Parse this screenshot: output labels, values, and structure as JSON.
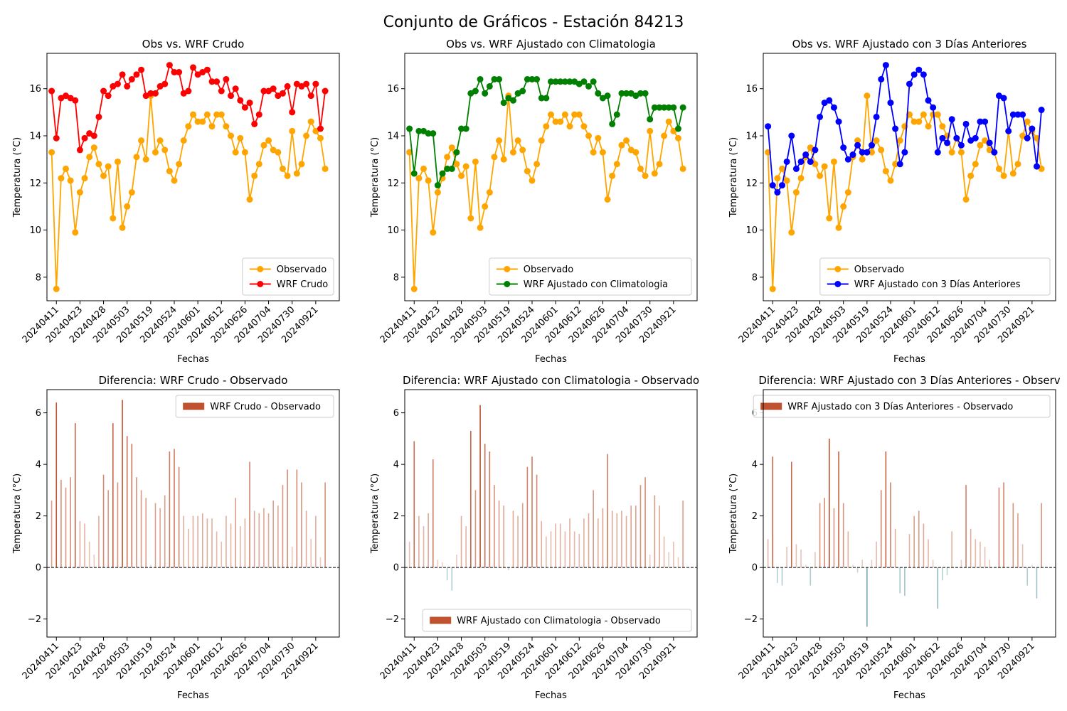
{
  "page": {
    "title": "Conjunto de Gráficos - Estación 84213"
  },
  "colors": {
    "observed": "#FFA500",
    "raw": "#FF0000",
    "clim": "#008000",
    "prev3": "#0000FF",
    "bar_pos": "#C0522F",
    "bar_neg": "#1F6F7F"
  },
  "chart_data": [
    {
      "type": "line",
      "title": "Obs vs. WRF Crudo",
      "xlabel": "Fechas",
      "ylabel": "Temperatura (°C)",
      "ylim": [
        7.0,
        17.5
      ],
      "yticks": [
        8,
        10,
        12,
        14,
        16
      ],
      "xticks": [
        {
          "x": 1,
          "label": "20240411"
        },
        {
          "x": 6,
          "label": "20240423"
        },
        {
          "x": 11,
          "label": "20240428"
        },
        {
          "x": 16,
          "label": "20240503"
        },
        {
          "x": 21,
          "label": "20240519"
        },
        {
          "x": 26,
          "label": "20240524"
        },
        {
          "x": 31,
          "label": "20240601"
        },
        {
          "x": 36,
          "label": "20240612"
        },
        {
          "x": 41,
          "label": "20240626"
        },
        {
          "x": 46,
          "label": "20240704"
        },
        {
          "x": 51,
          "label": "20240730"
        },
        {
          "x": 56,
          "label": "20240921"
        }
      ],
      "legend": "lower-right",
      "series": [
        {
          "name": "Observado",
          "color": "#FFA500",
          "values": [
            13.3,
            7.5,
            12.2,
            12.6,
            12.1,
            9.9,
            11.6,
            12.2,
            13.1,
            13.5,
            12.8,
            12.3,
            12.7,
            10.5,
            12.9,
            10.1,
            11.0,
            11.6,
            13.1,
            13.8,
            13.0,
            15.7,
            13.3,
            13.8,
            13.4,
            12.5,
            12.1,
            12.8,
            13.8,
            14.4,
            14.9,
            14.6,
            14.6,
            14.9,
            14.4,
            14.9,
            14.9,
            14.4,
            14.0,
            13.3,
            13.9,
            13.3,
            11.3,
            12.3,
            12.8,
            13.6,
            13.8,
            13.4,
            13.3,
            12.6,
            12.3,
            14.2,
            12.4,
            12.8,
            14.0,
            14.6,
            14.2,
            13.9,
            12.6
          ]
        },
        {
          "name": "WRF Crudo",
          "color": "#FF0000",
          "values": [
            15.9,
            13.9,
            15.6,
            15.7,
            15.6,
            15.5,
            13.4,
            13.9,
            14.1,
            14.0,
            14.8,
            15.9,
            15.7,
            16.1,
            16.2,
            16.6,
            16.1,
            16.4,
            16.6,
            16.8,
            15.7,
            15.8,
            15.8,
            16.1,
            16.2,
            17.0,
            16.7,
            16.7,
            15.8,
            15.9,
            16.9,
            16.6,
            16.7,
            16.8,
            16.3,
            16.3,
            15.9,
            16.4,
            15.7,
            16.0,
            15.5,
            15.2,
            15.4,
            14.5,
            14.9,
            15.9,
            15.9,
            16.0,
            15.7,
            15.8,
            16.1,
            15.0,
            16.2,
            16.1,
            16.2,
            15.7,
            16.2,
            14.3,
            15.9
          ]
        }
      ]
    },
    {
      "type": "line",
      "title": "Obs vs. WRF Ajustado con Climatologia",
      "xlabel": "Fechas",
      "ylabel": "Temperatura (°C)",
      "ylim": [
        7.0,
        17.5
      ],
      "yticks": [
        8,
        10,
        12,
        14,
        16
      ],
      "xticks": [
        {
          "x": 1,
          "label": "20240411"
        },
        {
          "x": 6,
          "label": "20240423"
        },
        {
          "x": 11,
          "label": "20240428"
        },
        {
          "x": 16,
          "label": "20240503"
        },
        {
          "x": 21,
          "label": "20240519"
        },
        {
          "x": 26,
          "label": "20240524"
        },
        {
          "x": 31,
          "label": "20240601"
        },
        {
          "x": 36,
          "label": "20240612"
        },
        {
          "x": 41,
          "label": "20240626"
        },
        {
          "x": 46,
          "label": "20240704"
        },
        {
          "x": 51,
          "label": "20240730"
        },
        {
          "x": 56,
          "label": "20240921"
        }
      ],
      "legend": "lower-right",
      "series": [
        {
          "name": "Observado",
          "color": "#FFA500",
          "values": [
            13.3,
            7.5,
            12.2,
            12.6,
            12.1,
            9.9,
            11.6,
            12.2,
            13.1,
            13.5,
            12.8,
            12.3,
            12.7,
            10.5,
            12.9,
            10.1,
            11.0,
            11.6,
            13.1,
            13.8,
            13.0,
            15.7,
            13.3,
            13.8,
            13.4,
            12.5,
            12.1,
            12.8,
            13.8,
            14.4,
            14.9,
            14.6,
            14.6,
            14.9,
            14.4,
            14.9,
            14.9,
            14.4,
            14.0,
            13.3,
            13.9,
            13.3,
            11.3,
            12.3,
            12.8,
            13.6,
            13.8,
            13.4,
            13.3,
            12.6,
            12.3,
            14.2,
            12.4,
            12.8,
            14.0,
            14.6,
            14.2,
            13.9,
            12.6
          ]
        },
        {
          "name": "WRF Ajustado con Climatologia",
          "color": "#008000",
          "values": [
            14.3,
            12.4,
            14.2,
            14.2,
            14.1,
            14.1,
            11.9,
            12.4,
            12.6,
            12.6,
            13.3,
            14.3,
            14.3,
            15.8,
            15.9,
            16.4,
            15.8,
            16.1,
            16.4,
            16.4,
            15.4,
            15.6,
            15.5,
            15.8,
            15.9,
            16.4,
            16.4,
            16.4,
            15.6,
            15.6,
            16.3,
            16.3,
            16.3,
            16.3,
            16.3,
            16.3,
            16.2,
            16.3,
            16.1,
            16.3,
            15.8,
            15.6,
            15.7,
            14.5,
            14.9,
            15.8,
            15.8,
            15.8,
            15.7,
            15.8,
            15.8,
            14.7,
            15.2,
            15.2,
            15.2,
            15.2,
            15.2,
            14.3,
            15.2
          ]
        }
      ]
    },
    {
      "type": "line",
      "title": "Obs vs. WRF Ajustado con 3 Días Anteriores",
      "xlabel": "Fechas",
      "ylabel": "Temperatura (°C)",
      "ylim": [
        7.0,
        17.5
      ],
      "yticks": [
        8,
        10,
        12,
        14,
        16
      ],
      "xticks": [
        {
          "x": 1,
          "label": "20240411"
        },
        {
          "x": 6,
          "label": "20240423"
        },
        {
          "x": 11,
          "label": "20240428"
        },
        {
          "x": 16,
          "label": "20240503"
        },
        {
          "x": 21,
          "label": "20240519"
        },
        {
          "x": 26,
          "label": "20240524"
        },
        {
          "x": 31,
          "label": "20240601"
        },
        {
          "x": 36,
          "label": "20240612"
        },
        {
          "x": 41,
          "label": "20240626"
        },
        {
          "x": 46,
          "label": "20240704"
        },
        {
          "x": 51,
          "label": "20240730"
        },
        {
          "x": 56,
          "label": "20240921"
        }
      ],
      "legend": "lower-right",
      "series": [
        {
          "name": "Observado",
          "color": "#FFA500",
          "values": [
            13.3,
            7.5,
            12.2,
            12.6,
            12.1,
            9.9,
            11.6,
            12.2,
            13.1,
            13.5,
            12.8,
            12.3,
            12.7,
            10.5,
            12.9,
            10.1,
            11.0,
            11.6,
            13.1,
            13.8,
            13.0,
            15.7,
            13.3,
            13.8,
            13.4,
            12.5,
            12.1,
            12.8,
            13.8,
            14.4,
            14.9,
            14.6,
            14.6,
            14.9,
            14.4,
            14.9,
            14.9,
            14.4,
            14.0,
            13.3,
            13.9,
            13.3,
            11.3,
            12.3,
            12.8,
            13.6,
            13.8,
            13.4,
            13.3,
            12.6,
            12.3,
            14.2,
            12.4,
            12.8,
            14.0,
            14.6,
            14.2,
            13.9,
            12.6
          ]
        },
        {
          "name": "WRF Ajustado con 3 Días Anteriores",
          "color": "#0000FF",
          "values": [
            14.4,
            11.9,
            11.6,
            11.9,
            12.9,
            14.0,
            12.6,
            12.9,
            13.2,
            12.9,
            13.4,
            14.8,
            15.4,
            15.5,
            15.2,
            14.6,
            13.5,
            13.0,
            13.2,
            13.6,
            13.3,
            13.3,
            13.6,
            14.8,
            16.4,
            17.0,
            15.4,
            14.3,
            12.8,
            13.3,
            16.2,
            16.6,
            16.8,
            16.6,
            15.5,
            15.2,
            13.3,
            13.9,
            13.7,
            14.7,
            13.9,
            13.6,
            14.5,
            13.8,
            13.9,
            14.6,
            14.6,
            13.7,
            13.3,
            15.7,
            15.6,
            14.2,
            14.9,
            14.9,
            14.9,
            13.9,
            14.3,
            12.7,
            15.1
          ]
        }
      ]
    },
    {
      "type": "bar",
      "title": "Diferencia: WRF Crudo - Observado",
      "xlabel": "Fechas",
      "ylabel": "Temperatura (°C)",
      "ylim": [
        -2.7,
        6.9
      ],
      "yticks": [
        -2,
        0,
        2,
        4,
        6
      ],
      "xticks": [
        {
          "x": 1,
          "label": "20240411"
        },
        {
          "x": 6,
          "label": "20240423"
        },
        {
          "x": 11,
          "label": "20240428"
        },
        {
          "x": 16,
          "label": "20240503"
        },
        {
          "x": 21,
          "label": "20240519"
        },
        {
          "x": 26,
          "label": "20240524"
        },
        {
          "x": 31,
          "label": "20240601"
        },
        {
          "x": 36,
          "label": "20240612"
        },
        {
          "x": 41,
          "label": "20240626"
        },
        {
          "x": 46,
          "label": "20240704"
        },
        {
          "x": 51,
          "label": "20240730"
        },
        {
          "x": 56,
          "label": "20240921"
        }
      ],
      "legend": "upper-right",
      "series": [
        {
          "name": "WRF Crudo - Observado",
          "values": [
            2.6,
            6.4,
            3.4,
            3.1,
            3.5,
            5.6,
            1.8,
            1.7,
            1.0,
            0.5,
            2.0,
            3.6,
            3.0,
            5.6,
            3.3,
            6.5,
            5.1,
            4.8,
            3.5,
            3.0,
            2.7,
            0.1,
            2.5,
            2.3,
            2.8,
            4.5,
            4.6,
            3.9,
            2.0,
            1.5,
            2.0,
            2.0,
            2.1,
            1.9,
            1.9,
            1.4,
            1.0,
            2.0,
            1.7,
            2.7,
            1.6,
            1.9,
            4.1,
            2.2,
            2.1,
            2.3,
            2.1,
            2.6,
            2.4,
            3.2,
            3.8,
            0.8,
            3.8,
            3.3,
            2.2,
            1.1,
            2.0,
            0.4,
            3.3
          ]
        }
      ]
    },
    {
      "type": "bar",
      "title": "Diferencia: WRF Ajustado con Climatologia - Observado",
      "xlabel": "Fechas",
      "ylabel": "Temperatura (°C)",
      "ylim": [
        -2.7,
        6.9
      ],
      "yticks": [
        -2,
        0,
        2,
        4,
        6
      ],
      "xticks": [
        {
          "x": 1,
          "label": "20240411"
        },
        {
          "x": 6,
          "label": "20240423"
        },
        {
          "x": 11,
          "label": "20240428"
        },
        {
          "x": 16,
          "label": "20240503"
        },
        {
          "x": 21,
          "label": "20240519"
        },
        {
          "x": 26,
          "label": "20240524"
        },
        {
          "x": 31,
          "label": "20240601"
        },
        {
          "x": 36,
          "label": "20240612"
        },
        {
          "x": 41,
          "label": "20240626"
        },
        {
          "x": 46,
          "label": "20240704"
        },
        {
          "x": 51,
          "label": "20240730"
        },
        {
          "x": 56,
          "label": "20240921"
        }
      ],
      "legend": "lower-right",
      "series": [
        {
          "name": "WRF Ajustado con Climatologia - Observado",
          "values": [
            1.0,
            4.9,
            2.0,
            1.6,
            2.1,
            4.2,
            0.3,
            0.2,
            -0.5,
            -0.9,
            0.5,
            2.0,
            1.6,
            5.3,
            3.0,
            6.3,
            4.8,
            4.5,
            3.2,
            2.6,
            2.4,
            -0.1,
            2.2,
            2.0,
            2.5,
            3.9,
            4.3,
            3.6,
            1.8,
            1.2,
            1.4,
            1.7,
            1.7,
            1.4,
            1.9,
            1.4,
            1.3,
            1.9,
            2.1,
            3.0,
            1.9,
            2.3,
            4.4,
            2.2,
            2.1,
            2.2,
            2.0,
            2.4,
            2.4,
            3.2,
            3.5,
            0.5,
            2.8,
            2.4,
            1.2,
            0.6,
            1.0,
            0.4,
            2.6
          ]
        }
      ]
    },
    {
      "type": "bar",
      "title": "Diferencia: WRF Ajustado con 3 Días Anteriores - Observ",
      "xlabel": "Fechas",
      "ylabel": "Temperatura (°C)",
      "ylim": [
        -2.7,
        6.9
      ],
      "yticks": [
        -2,
        0,
        2,
        4,
        6
      ],
      "xticks": [
        {
          "x": 1,
          "label": "20240411"
        },
        {
          "x": 6,
          "label": "20240423"
        },
        {
          "x": 11,
          "label": "20240428"
        },
        {
          "x": 16,
          "label": "20240503"
        },
        {
          "x": 21,
          "label": "20240519"
        },
        {
          "x": 26,
          "label": "20240524"
        },
        {
          "x": 31,
          "label": "20240601"
        },
        {
          "x": 36,
          "label": "20240612"
        },
        {
          "x": 41,
          "label": "20240626"
        },
        {
          "x": 46,
          "label": "20240704"
        },
        {
          "x": 51,
          "label": "20240730"
        },
        {
          "x": 56,
          "label": "20240921"
        }
      ],
      "legend": "upper-right",
      "series": [
        {
          "name": "WRF Ajustado con 3 Días Anteriores - Observado",
          "values": [
            1.1,
            4.3,
            -0.6,
            -0.7,
            0.8,
            4.1,
            0.9,
            0.7,
            0.1,
            -0.7,
            0.6,
            2.5,
            2.7,
            5.0,
            2.3,
            4.5,
            2.5,
            1.4,
            0.1,
            -0.2,
            0.3,
            -2.3,
            0.3,
            1.0,
            3.0,
            4.5,
            3.3,
            1.5,
            -1.0,
            -1.1,
            1.3,
            2.0,
            2.2,
            1.7,
            1.1,
            0.3,
            -1.6,
            -0.5,
            -0.3,
            1.4,
            0.0,
            0.3,
            3.2,
            1.5,
            1.1,
            1.0,
            0.8,
            0.3,
            0.0,
            3.1,
            3.3,
            0.0,
            2.5,
            2.1,
            0.9,
            -0.7,
            0.1,
            -1.2,
            2.5
          ]
        }
      ]
    }
  ]
}
